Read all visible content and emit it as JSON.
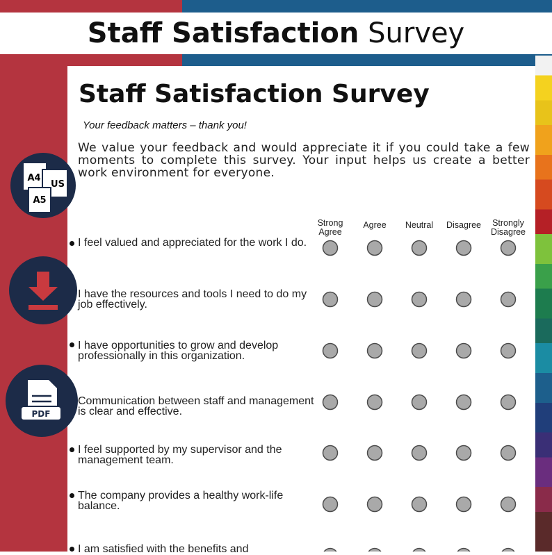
{
  "banner": {
    "title_bold": "Staff Satisfaction",
    "title_regular": "Survey"
  },
  "icons": {
    "sizes": [
      "A4",
      "US",
      "A5"
    ],
    "pdf": "PDF"
  },
  "document": {
    "title": "Staff Satisfaction Survey",
    "subtitle": "Your feedback matters – thank you!",
    "intro": "We value your feedback and would appreciate it if you could take a few moments to complete this survey. Your input helps us create a better work environment for everyone.",
    "scale": [
      "Strong Agree",
      "Agree",
      "Neutral",
      "Disagree",
      "Strongly Disagree"
    ],
    "questions": [
      "I feel valued and appreciated for the work I do.",
      "I have the resources and tools I need to do my job effectively.",
      "I have opportunities to grow and develop professionally in this organization.",
      "Communication between staff and management is clear and effective.",
      "I feel supported by my supervisor and the management team.",
      "The company provides a healthy work-life balance.",
      "I am satisfied with the benefits and"
    ]
  }
}
